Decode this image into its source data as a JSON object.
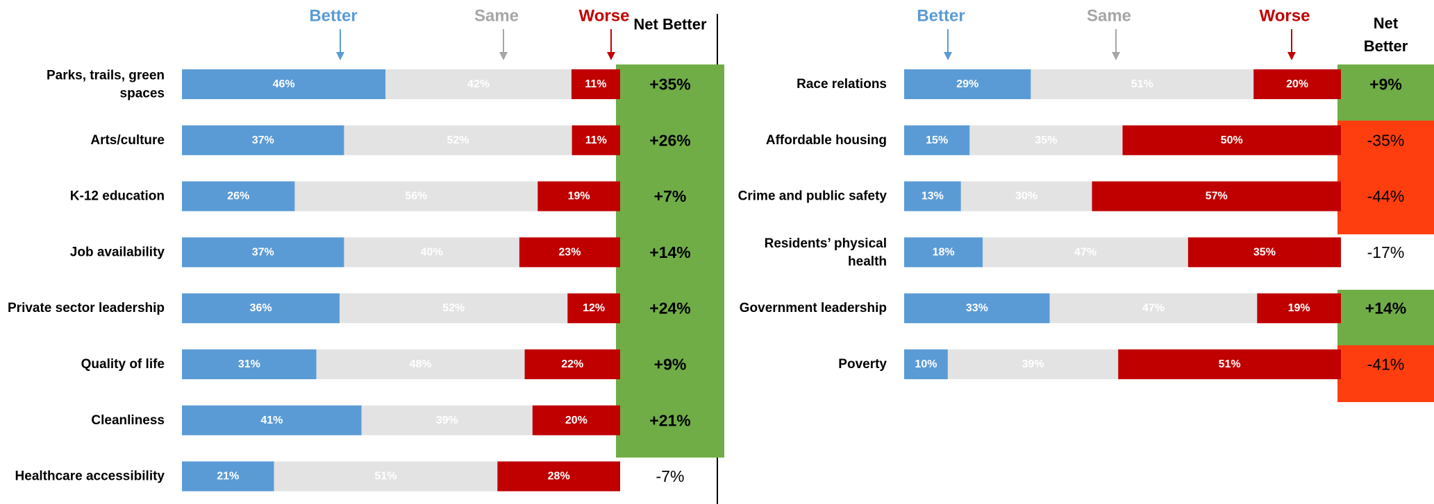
{
  "colors": {
    "better": "#5b9bd5",
    "same": "#e3e3e3",
    "worse": "#c00000",
    "net_positive": "#70ad47",
    "net_negative": "#ff3e10",
    "same_text": "#ffffff",
    "better_legend": "#5b9bd5",
    "same_legend": "#a6a6a6",
    "worse_legend": "#c00000",
    "divider": "#000000"
  },
  "legend": {
    "better": "Better",
    "same": "Same",
    "worse": "Worse"
  },
  "chart_data": [
    {
      "type": "bar",
      "stacked": true,
      "orientation": "horizontal",
      "net_header": "Net Better",
      "categories": [
        "Parks, trails, green spaces",
        "Arts/culture",
        "K-12 education",
        "Job availability",
        "Private sector leadership",
        "Quality of life",
        "Cleanliness",
        "Healthcare accessibility"
      ],
      "category_lines": [
        [
          "Parks, trails, green",
          "spaces"
        ],
        [
          "Arts/culture"
        ],
        [
          "K-12 education"
        ],
        [
          "Job availability"
        ],
        [
          "Private sector leadership"
        ],
        [
          "Quality of life"
        ],
        [
          "Cleanliness"
        ],
        [
          "Healthcare accessibility"
        ]
      ],
      "series": [
        {
          "name": "Better",
          "values": [
            46,
            37,
            26,
            37,
            36,
            31,
            41,
            21
          ]
        },
        {
          "name": "Same",
          "values": [
            42,
            52,
            56,
            40,
            52,
            48,
            39,
            51
          ]
        },
        {
          "name": "Worse",
          "values": [
            11,
            11,
            19,
            23,
            12,
            22,
            20,
            28
          ]
        }
      ],
      "net_better": [
        "+35%",
        "+26%",
        "+7%",
        "+14%",
        "+24%",
        "+9%",
        "+21%",
        "-7%"
      ],
      "net_values": [
        35,
        26,
        7,
        14,
        24,
        9,
        21,
        -7
      ],
      "net_highlight": [
        "positive",
        "positive",
        "positive",
        "positive",
        "positive",
        "positive",
        "positive",
        "none"
      ]
    },
    {
      "type": "bar",
      "stacked": true,
      "orientation": "horizontal",
      "net_header": "Net Better",
      "categories": [
        "Race relations",
        "Affordable housing",
        "Crime and public safety",
        "Residents’ physical health",
        "Government leadership",
        "Poverty"
      ],
      "category_lines": [
        [
          "Race relations"
        ],
        [
          "Affordable housing"
        ],
        [
          "Crime and public safety"
        ],
        [
          "Residents’ physical",
          "health"
        ],
        [
          "Government leadership"
        ],
        [
          "Poverty"
        ]
      ],
      "series": [
        {
          "name": "Better",
          "values": [
            29,
            15,
            13,
            18,
            33,
            10
          ]
        },
        {
          "name": "Same",
          "values": [
            51,
            35,
            30,
            47,
            47,
            39
          ]
        },
        {
          "name": "Worse",
          "values": [
            20,
            50,
            57,
            35,
            19,
            51
          ]
        }
      ],
      "net_better": [
        "+9%",
        "-35%",
        "-44%",
        "-17%",
        "+14%",
        "-41%"
      ],
      "net_values": [
        9,
        -35,
        -44,
        -17,
        14,
        -41
      ],
      "net_highlight": [
        "positive",
        "negative",
        "negative",
        "none",
        "positive",
        "negative"
      ]
    }
  ]
}
